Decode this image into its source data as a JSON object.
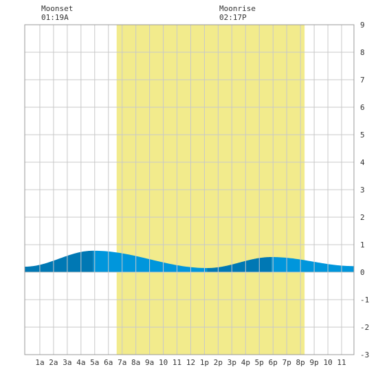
{
  "moon_events": [
    {
      "label": "Moonset",
      "time": "01:19A",
      "hour": 1.32
    },
    {
      "label": "Moonrise",
      "time": "02:17P",
      "hour": 14.28
    }
  ],
  "colors": {
    "daylight": "#f2eb8c",
    "tide_light": "#0096dc",
    "tide_dark": "#0078b4",
    "grid": "#c8c8c8",
    "frame": "#999999"
  },
  "chart_data": {
    "type": "area",
    "title": "",
    "xlabel": "",
    "ylabel": "",
    "xlim": [
      -0.1,
      23.9
    ],
    "ylim": [
      -3,
      9
    ],
    "y_ticks": [
      "-3",
      "-2",
      "-1",
      "0",
      "1",
      "2",
      "3",
      "4",
      "5",
      "6",
      "7",
      "8",
      "9"
    ],
    "x_ticks": [
      {
        "hour": 1,
        "label": "1a"
      },
      {
        "hour": 2,
        "label": "2a"
      },
      {
        "hour": 3,
        "label": "3a"
      },
      {
        "hour": 4,
        "label": "4a"
      },
      {
        "hour": 5,
        "label": "5a"
      },
      {
        "hour": 6,
        "label": "6a"
      },
      {
        "hour": 7,
        "label": "7a"
      },
      {
        "hour": 8,
        "label": "8a"
      },
      {
        "hour": 9,
        "label": "9a"
      },
      {
        "hour": 10,
        "label": "10"
      },
      {
        "hour": 11,
        "label": "11"
      },
      {
        "hour": 12,
        "label": "12"
      },
      {
        "hour": 13,
        "label": "1p"
      },
      {
        "hour": 14,
        "label": "2p"
      },
      {
        "hour": 15,
        "label": "3p"
      },
      {
        "hour": 16,
        "label": "4p"
      },
      {
        "hour": 17,
        "label": "5p"
      },
      {
        "hour": 18,
        "label": "6p"
      },
      {
        "hour": 19,
        "label": "7p"
      },
      {
        "hour": 20,
        "label": "8p"
      },
      {
        "hour": 21,
        "label": "9p"
      },
      {
        "hour": 22,
        "label": "10"
      },
      {
        "hour": 23,
        "label": "11"
      }
    ],
    "daylight": {
      "start": 6.6,
      "end": 20.3
    },
    "tide_extremes": [
      {
        "hour": -0.1,
        "height": 0.2
      },
      {
        "hour": 4.9,
        "height": 0.78
      },
      {
        "hour": 13.2,
        "height": 0.15
      },
      {
        "hour": 17.9,
        "height": 0.55
      },
      {
        "hour": 23.9,
        "height": 0.22
      }
    ],
    "band_boundaries": [
      4.9,
      13.2,
      17.9
    ],
    "grid": true
  }
}
